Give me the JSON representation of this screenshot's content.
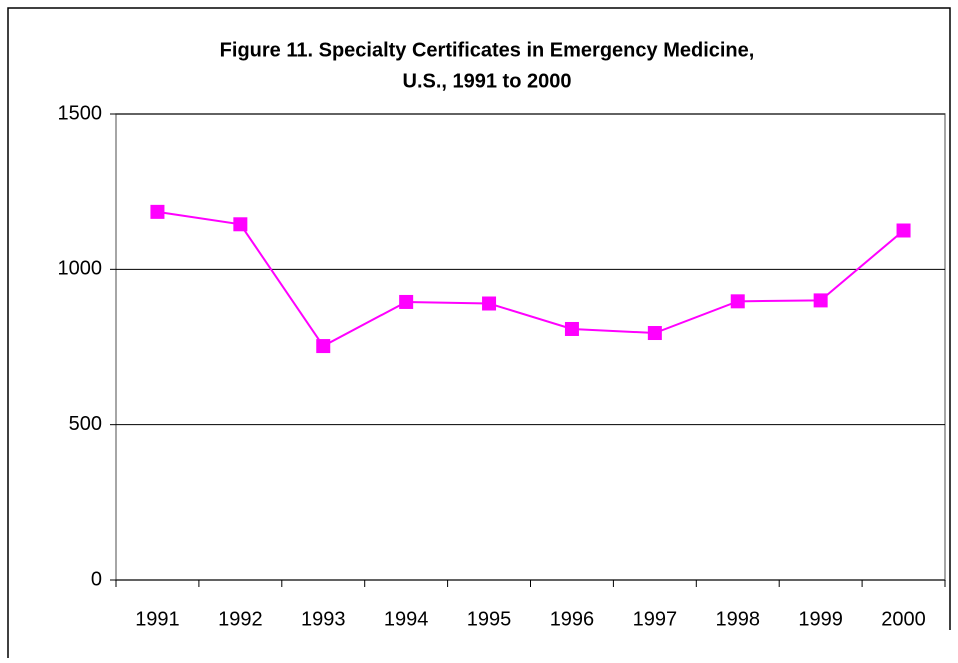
{
  "chart_data": {
    "type": "line",
    "title": [
      "Figure 11.  Specialty Certificates in Emergency Medicine,",
      "U.S., 1991 to 2000"
    ],
    "categories": [
      "1991",
      "1992",
      "1993",
      "1994",
      "1995",
      "1996",
      "1997",
      "1998",
      "1999",
      "2000"
    ],
    "series": [
      {
        "name": "Specialty Certificates",
        "color": "#ff00ff",
        "values": [
          1185,
          1145,
          753,
          895,
          890,
          808,
          795,
          897,
          900,
          1125
        ]
      }
    ],
    "ylim": [
      0,
      1500
    ],
    "yticks": [
      0,
      500,
      1000,
      1500
    ],
    "grid": true,
    "legend": false
  }
}
